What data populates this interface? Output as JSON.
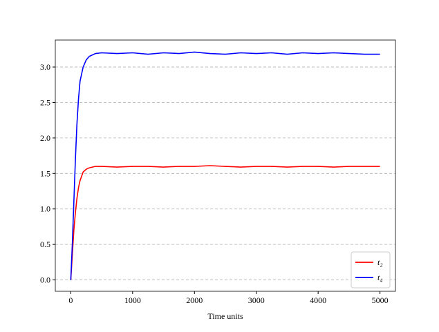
{
  "chart_data": {
    "type": "line",
    "xlabel": "Time units",
    "x": [
      0,
      25,
      50,
      75,
      100,
      125,
      150,
      200,
      250,
      300,
      400,
      500,
      750,
      1000,
      1250,
      1500,
      1750,
      2000,
      2250,
      2500,
      2750,
      3000,
      3250,
      3500,
      3750,
      4000,
      4250,
      4500,
      4750,
      5000
    ],
    "series": [
      {
        "name": "t₂",
        "color": "#ff0000",
        "values": [
          0,
          0.35,
          0.7,
          0.95,
          1.15,
          1.3,
          1.4,
          1.52,
          1.56,
          1.58,
          1.6,
          1.6,
          1.59,
          1.6,
          1.6,
          1.59,
          1.6,
          1.6,
          1.61,
          1.6,
          1.59,
          1.6,
          1.6,
          1.59,
          1.6,
          1.6,
          1.59,
          1.6,
          1.6,
          1.6
        ]
      },
      {
        "name": "t₄",
        "color": "#0000ff",
        "values": [
          0,
          0.5,
          1.1,
          1.7,
          2.2,
          2.55,
          2.8,
          3.0,
          3.1,
          3.15,
          3.19,
          3.2,
          3.19,
          3.2,
          3.18,
          3.2,
          3.19,
          3.21,
          3.19,
          3.18,
          3.2,
          3.19,
          3.2,
          3.18,
          3.2,
          3.19,
          3.2,
          3.19,
          3.18,
          3.18
        ]
      }
    ],
    "xlim": [
      -250,
      5250
    ],
    "xticks": [
      0,
      1000,
      2000,
      3000,
      4000,
      5000
    ],
    "ylim": [
      -0.16,
      3.38
    ],
    "yticks": [
      {
        "value": 0,
        "label": "0.0"
      },
      0.5,
      {
        "value": 1,
        "label": "1.0"
      },
      1.5,
      {
        "value": 2,
        "label": "2.0"
      },
      2.5,
      {
        "value": 3,
        "label": "3.0"
      }
    ],
    "grid": "y",
    "legend": "lower right"
  }
}
